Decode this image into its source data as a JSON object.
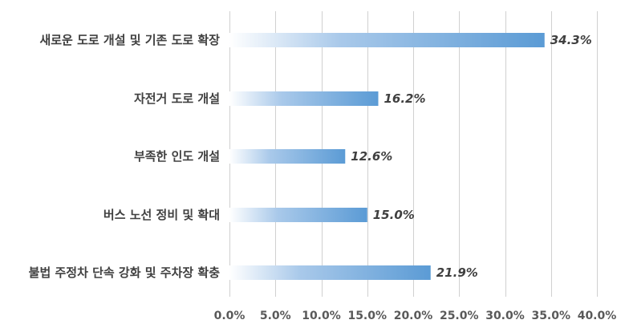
{
  "chart_data": {
    "type": "bar",
    "orientation": "horizontal",
    "categories": [
      "새로운 도로 개설 및 기존 도로 확장",
      "자전거 도로 개설",
      "부족한 인도 개설",
      "버스 노선 정비 및 확대",
      "불법 주정차 단속 강화 및 주차장 확충"
    ],
    "values": [
      34.3,
      16.2,
      12.6,
      15.0,
      21.9
    ],
    "value_labels": [
      "34.3%",
      "16.2%",
      "12.6%",
      "15.0%",
      "21.9%"
    ],
    "xlim": [
      0,
      40
    ],
    "x_ticks": [
      0,
      5,
      10,
      15,
      20,
      25,
      30,
      35,
      40
    ],
    "x_tick_labels": [
      "0.0%",
      "5.0%",
      "10.0%",
      "15.0%",
      "20.0%",
      "25.0%",
      "30.0%",
      "35.0%",
      "40.0%"
    ],
    "grid": "vertical",
    "bar_color_start": "#ffffff",
    "bar_color_end": "#5b9bd5",
    "grid_color": "#d0d0d0"
  }
}
